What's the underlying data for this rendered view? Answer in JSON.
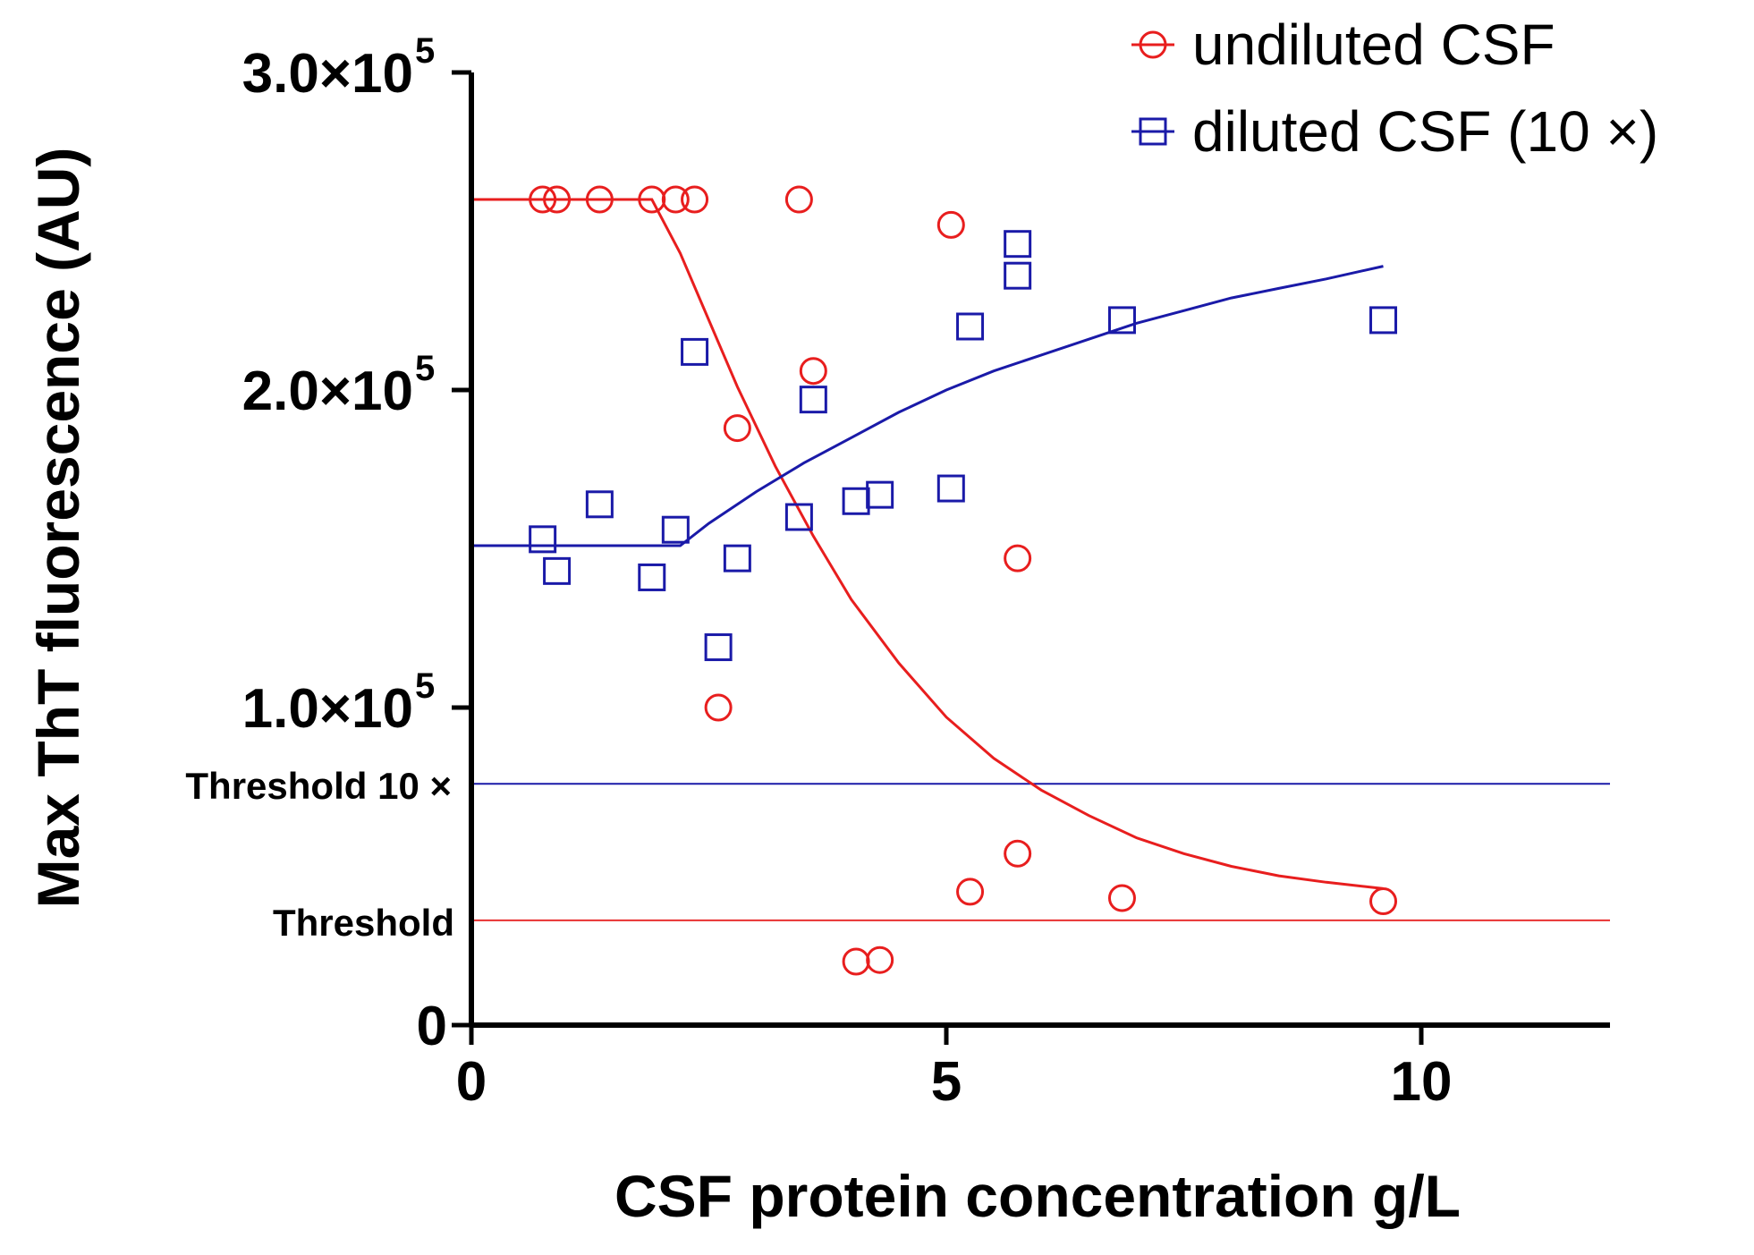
{
  "chart_data": {
    "type": "scatter",
    "title": "",
    "xlabel": "CSF protein concentration g/L",
    "ylabel": "Max ThT fluorescence (AU)",
    "xlim": [
      0,
      12
    ],
    "ylim": [
      0,
      300000
    ],
    "grid": false,
    "legend_position": "top-right",
    "x_ticks": [
      {
        "value": 0,
        "label": "0"
      },
      {
        "value": 5,
        "label": "5"
      },
      {
        "value": 10,
        "label": "10"
      }
    ],
    "y_ticks": [
      {
        "value": 0,
        "mantissa": "0",
        "exponent": ""
      },
      {
        "value": 100000,
        "mantissa": "1.0×10",
        "exponent": "5"
      },
      {
        "value": 200000,
        "mantissa": "2.0×10",
        "exponent": "5"
      },
      {
        "value": 300000,
        "mantissa": "3.0×10",
        "exponent": "5"
      }
    ],
    "thresholds": [
      {
        "name": "diluted-threshold",
        "label": "Threshold 10 ×",
        "value": 76000,
        "color": "#1a1aa8"
      },
      {
        "name": "undiluted-threshold",
        "label": "Threshold",
        "value": 33000,
        "color": "#e83030"
      }
    ],
    "series": [
      {
        "name": "undiluted CSF",
        "marker": "circle",
        "color": "#e81e1e",
        "points": [
          [
            0.75,
            260000
          ],
          [
            0.9,
            260000
          ],
          [
            1.35,
            260000
          ],
          [
            1.9,
            260000
          ],
          [
            2.15,
            260000
          ],
          [
            2.35,
            260000
          ],
          [
            3.45,
            260000
          ],
          [
            5.05,
            252000
          ],
          [
            3.6,
            206000
          ],
          [
            2.8,
            188000
          ],
          [
            5.75,
            147000
          ],
          [
            2.6,
            100000
          ],
          [
            5.75,
            54000
          ],
          [
            5.25,
            42000
          ],
          [
            6.85,
            40000
          ],
          [
            9.6,
            39000
          ],
          [
            4.05,
            20000
          ],
          [
            4.3,
            20500
          ]
        ],
        "fit": [
          [
            0,
            260000
          ],
          [
            1.9,
            260000
          ],
          [
            2.2,
            243000
          ],
          [
            2.5,
            222000
          ],
          [
            2.8,
            201000
          ],
          [
            3.2,
            176000
          ],
          [
            3.6,
            154000
          ],
          [
            4.0,
            134000
          ],
          [
            4.5,
            114000
          ],
          [
            5.0,
            97000
          ],
          [
            5.5,
            84000
          ],
          [
            6.0,
            74000
          ],
          [
            6.5,
            66000
          ],
          [
            7.0,
            59000
          ],
          [
            7.5,
            54000
          ],
          [
            8.0,
            50000
          ],
          [
            8.5,
            47000
          ],
          [
            9.0,
            45000
          ],
          [
            9.6,
            43000
          ]
        ]
      },
      {
        "name": "diluted CSF (10 ×)",
        "marker": "square",
        "color": "#1a1aa8",
        "points": [
          [
            0.75,
            153000
          ],
          [
            0.9,
            143000
          ],
          [
            1.35,
            164000
          ],
          [
            1.9,
            141000
          ],
          [
            2.15,
            156000
          ],
          [
            2.35,
            212000
          ],
          [
            2.6,
            119000
          ],
          [
            2.8,
            147000
          ],
          [
            3.45,
            160000
          ],
          [
            3.6,
            197000
          ],
          [
            4.05,
            165000
          ],
          [
            4.3,
            167000
          ],
          [
            5.05,
            169000
          ],
          [
            5.25,
            220000
          ],
          [
            5.75,
            246000
          ],
          [
            5.75,
            236000
          ],
          [
            6.85,
            222000
          ],
          [
            9.6,
            222000
          ]
        ],
        "fit": [
          [
            0,
            151000
          ],
          [
            2.2,
            151000
          ],
          [
            2.5,
            158000
          ],
          [
            3.0,
            168000
          ],
          [
            3.5,
            177000
          ],
          [
            4.0,
            185000
          ],
          [
            4.5,
            193000
          ],
          [
            5.0,
            200000
          ],
          [
            5.5,
            206000
          ],
          [
            6.0,
            211000
          ],
          [
            6.5,
            216000
          ],
          [
            7.0,
            221000
          ],
          [
            7.5,
            225000
          ],
          [
            8.0,
            229000
          ],
          [
            8.5,
            232000
          ],
          [
            9.0,
            235000
          ],
          [
            9.6,
            239000
          ]
        ]
      }
    ]
  }
}
